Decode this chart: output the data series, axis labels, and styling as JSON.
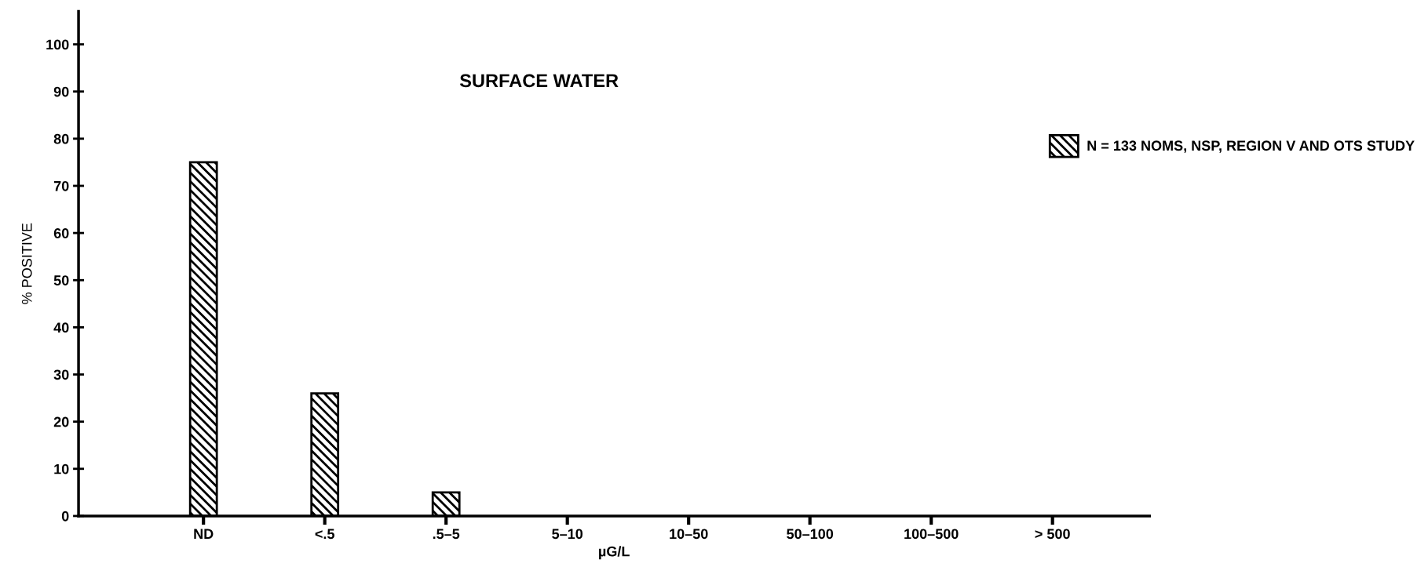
{
  "chart_data": {
    "type": "bar",
    "title": "SURFACE WATER",
    "xlabel": "µG/L",
    "ylabel": "% POSITIVE",
    "categories": [
      "ND",
      "<.5",
      ".5–5",
      "5–10",
      "10–50",
      "50–100",
      "100–500",
      "> 500"
    ],
    "series": [
      {
        "name": "N = 133 NOMS, NSP, REGION V AND OTS STUDY",
        "color": "#000000",
        "values": [
          75,
          26,
          5,
          null,
          null,
          null,
          null,
          null
        ]
      }
    ],
    "ylim": [
      0,
      107
    ],
    "yticks": [
      0,
      10,
      20,
      30,
      40,
      50,
      60,
      70,
      80,
      90,
      100
    ],
    "grid": false,
    "legend": "top right"
  }
}
